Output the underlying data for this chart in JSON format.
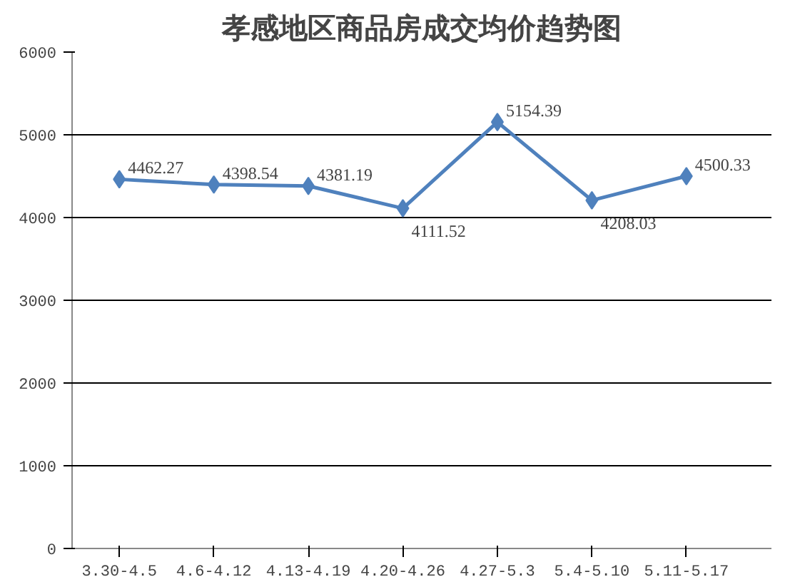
{
  "chart_data": {
    "type": "line",
    "title": "孝感地区商品房成交均价趋势图",
    "categories": [
      "3.30-4.5",
      "4.6-4.12",
      "4.13-4.19",
      "4.20-4.26",
      "4.27-5.3",
      "5.4-5.10",
      "5.11-5.17"
    ],
    "series": [
      {
        "color": "#4f81bd",
        "values": [
          4462.27,
          4398.54,
          4381.19,
          4111.52,
          5154.39,
          4208.03,
          4500.33
        ]
      }
    ],
    "ylim": [
      0,
      6000
    ],
    "yticks": [
      0,
      1000,
      2000,
      3000,
      4000,
      5000,
      6000
    ],
    "grid": "y",
    "marker": "diamond",
    "data_labels": true
  }
}
